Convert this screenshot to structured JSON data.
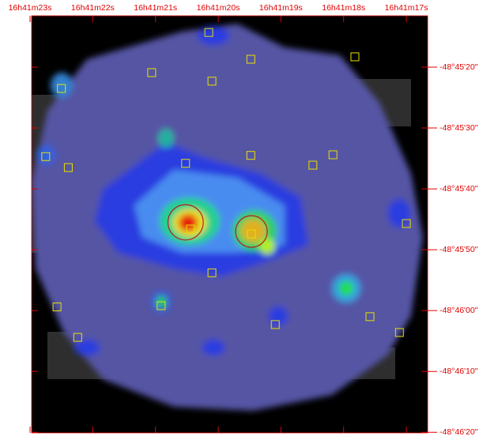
{
  "chart_data": {
    "type": "image",
    "xlim": [
      22.975,
      16.66
    ],
    "ylim": [
      11.56,
      80.1
    ],
    "xticks": [
      {
        "value": 23,
        "label": "16h41m23s"
      },
      {
        "value": 22,
        "label": "16h41m22s"
      },
      {
        "value": 21,
        "label": "16h41m21s"
      },
      {
        "value": 20,
        "label": "16h41m20s"
      },
      {
        "value": 19,
        "label": "16h41m19s"
      },
      {
        "value": 18,
        "label": "16h41m18s"
      },
      {
        "value": 17,
        "label": "16h41m17s"
      }
    ],
    "yticks": [
      {
        "value": 20,
        "label": "-48°45'20\""
      },
      {
        "value": 30,
        "label": "-48°45'30\""
      },
      {
        "value": 40,
        "label": "-48°45'40\""
      },
      {
        "value": 50,
        "label": "-48°45'50\""
      },
      {
        "value": 60,
        "label": "-48°46'00\""
      },
      {
        "value": 70,
        "label": "-48°46'10\""
      },
      {
        "value": 80,
        "label": "-48°46'20\""
      }
    ],
    "axis_color": "#e00000",
    "sources": {
      "color": "#e8e000",
      "x": [
        20.15,
        19.48,
        17.82,
        21.06,
        20.1,
        22.5,
        22.75,
        22.39,
        20.52,
        19.48,
        18.49,
        18.17,
        17.0,
        20.44,
        19.47,
        20.1,
        20.91,
        22.57,
        17.58,
        19.09,
        22.24,
        17.11
      ],
      "y": [
        14.3,
        18.7,
        18.3,
        20.9,
        22.3,
        23.5,
        34.7,
        36.5,
        35.8,
        34.5,
        36.1,
        34.4,
        45.7,
        46.6,
        47.4,
        53.8,
        59.2,
        59.4,
        61.0,
        62.3,
        64.4,
        63.6
      ]
    },
    "regions": {
      "color": "#b02020",
      "x": [
        20.52,
        19.47
      ],
      "y": [
        45.5,
        47.0
      ],
      "radius": [
        2.9,
        2.6
      ]
    }
  }
}
